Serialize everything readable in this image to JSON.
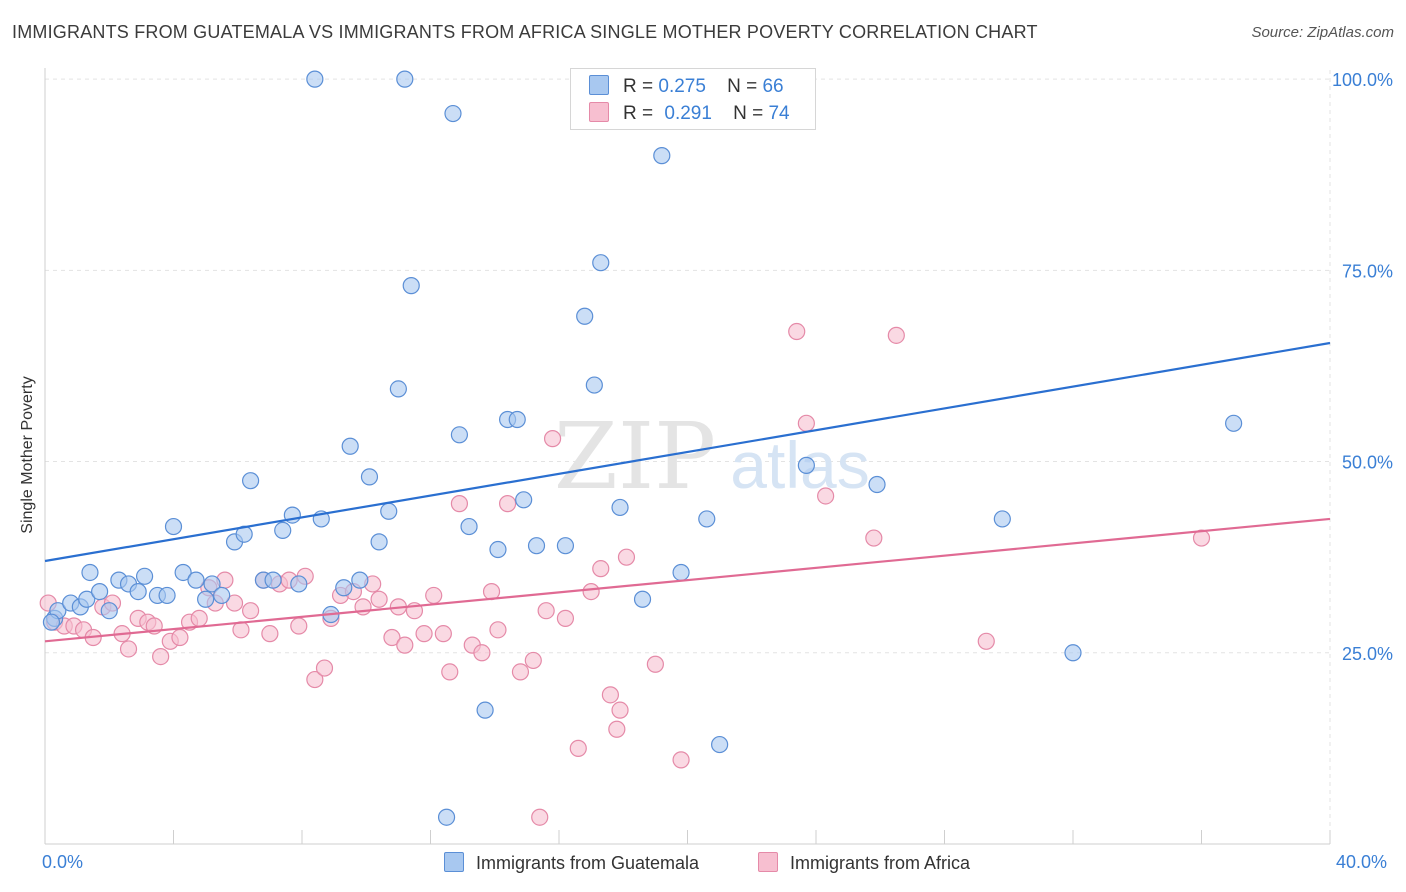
{
  "title": "IMMIGRANTS FROM GUATEMALA VS IMMIGRANTS FROM AFRICA SINGLE MOTHER POVERTY CORRELATION CHART",
  "source": "Source: ZipAtlas.com",
  "watermark": {
    "zip": "ZIP",
    "atlas": "atlas"
  },
  "legend": {
    "rows": [
      {
        "r_label": "R =",
        "r_value": "0.275",
        "n_label": "N =",
        "n_value": "66"
      },
      {
        "r_label": "R =",
        "r_value": "0.291",
        "n_label": "N =",
        "n_value": "74"
      }
    ]
  },
  "colors": {
    "guatemala_fill": "#a8c8f0",
    "guatemala_stroke": "#5b8fd6",
    "guatemala_line": "#2a6fd0",
    "africa_fill": "#f7bfd0",
    "africa_stroke": "#e58aa8",
    "africa_line": "#e06a93",
    "tick_text": "#3a7fd5",
    "grid": "#e3e3e3"
  },
  "chart_data": {
    "type": "scatter",
    "title": "IMMIGRANTS FROM GUATEMALA VS IMMIGRANTS FROM AFRICA SINGLE MOTHER POVERTY CORRELATION CHART",
    "xlabel": "",
    "ylabel": "Single Mother Poverty",
    "x_ticks": [
      "0.0%",
      "40.0%"
    ],
    "y_ticks": [
      "25.0%",
      "50.0%",
      "75.0%",
      "100.0%"
    ],
    "y_tick_values": [
      25,
      50,
      75,
      100
    ],
    "xlim": [
      0,
      40
    ],
    "ylim": [
      0,
      102.5
    ],
    "grid": true,
    "legend_position": "top-center",
    "series": [
      {
        "name": "Immigrants from Guatemala",
        "r": 0.275,
        "n": 66,
        "trend": {
          "x": [
            0,
            40
          ],
          "y": [
            37.0,
            65.5
          ]
        },
        "points": [
          [
            0.3,
            29.5
          ],
          [
            0.4,
            30.5
          ],
          [
            0.8,
            31.5
          ],
          [
            1.1,
            31.0
          ],
          [
            1.3,
            32.0
          ],
          [
            1.4,
            35.5
          ],
          [
            1.7,
            33.0
          ],
          [
            2.0,
            30.5
          ],
          [
            2.3,
            34.5
          ],
          [
            2.6,
            34.0
          ],
          [
            2.9,
            33.0
          ],
          [
            3.1,
            35.0
          ],
          [
            3.5,
            32.5
          ],
          [
            3.8,
            32.5
          ],
          [
            4.0,
            41.5
          ],
          [
            4.3,
            35.5
          ],
          [
            4.7,
            34.5
          ],
          [
            5.0,
            32.0
          ],
          [
            5.2,
            34.0
          ],
          [
            5.5,
            32.5
          ],
          [
            5.9,
            39.5
          ],
          [
            6.2,
            40.5
          ],
          [
            6.4,
            47.5
          ],
          [
            6.8,
            34.5
          ],
          [
            7.1,
            34.5
          ],
          [
            7.4,
            41.0
          ],
          [
            7.7,
            43.0
          ],
          [
            7.9,
            34.0
          ],
          [
            8.4,
            100.0
          ],
          [
            8.6,
            42.5
          ],
          [
            8.9,
            30.0
          ],
          [
            9.3,
            33.5
          ],
          [
            9.5,
            52.0
          ],
          [
            9.8,
            34.5
          ],
          [
            10.1,
            48.0
          ],
          [
            10.4,
            39.5
          ],
          [
            10.7,
            43.5
          ],
          [
            11.0,
            59.5
          ],
          [
            11.2,
            100.0
          ],
          [
            11.4,
            73.0
          ],
          [
            12.7,
            95.5
          ],
          [
            12.9,
            53.5
          ],
          [
            12.5,
            3.5
          ],
          [
            13.2,
            41.5
          ],
          [
            13.7,
            17.5
          ],
          [
            14.1,
            38.5
          ],
          [
            14.4,
            55.5
          ],
          [
            14.7,
            55.5
          ],
          [
            14.9,
            45.0
          ],
          [
            15.3,
            39.0
          ],
          [
            16.2,
            39.0
          ],
          [
            16.8,
            69.0
          ],
          [
            17.1,
            60.0
          ],
          [
            17.3,
            76.0
          ],
          [
            17.9,
            44.0
          ],
          [
            18.6,
            32.0
          ],
          [
            19.2,
            90.0
          ],
          [
            19.8,
            35.5
          ],
          [
            20.6,
            42.5
          ],
          [
            21.0,
            13.0
          ],
          [
            23.7,
            49.5
          ],
          [
            25.9,
            47.0
          ],
          [
            29.8,
            42.5
          ],
          [
            32.0,
            25.0
          ],
          [
            37.0,
            55.0
          ],
          [
            0.2,
            29.0
          ]
        ]
      },
      {
        "name": "Immigrants from Africa",
        "r": 0.291,
        "n": 74,
        "trend": {
          "x": [
            0,
            40
          ],
          "y": [
            26.5,
            42.5
          ]
        },
        "points": [
          [
            0.1,
            31.5
          ],
          [
            0.3,
            29.0
          ],
          [
            0.6,
            28.5
          ],
          [
            0.9,
            28.5
          ],
          [
            1.2,
            28.0
          ],
          [
            1.5,
            27.0
          ],
          [
            1.8,
            31.0
          ],
          [
            2.1,
            31.5
          ],
          [
            2.4,
            27.5
          ],
          [
            2.6,
            25.5
          ],
          [
            2.9,
            29.5
          ],
          [
            3.2,
            29.0
          ],
          [
            3.4,
            28.5
          ],
          [
            3.6,
            24.5
          ],
          [
            3.9,
            26.5
          ],
          [
            4.2,
            27.0
          ],
          [
            4.5,
            29.0
          ],
          [
            4.8,
            29.5
          ],
          [
            5.1,
            33.5
          ],
          [
            5.3,
            31.5
          ],
          [
            5.6,
            34.5
          ],
          [
            5.9,
            31.5
          ],
          [
            6.1,
            28.0
          ],
          [
            6.4,
            30.5
          ],
          [
            6.8,
            34.5
          ],
          [
            7.0,
            27.5
          ],
          [
            7.3,
            34.0
          ],
          [
            7.6,
            34.5
          ],
          [
            7.9,
            28.5
          ],
          [
            8.1,
            35.0
          ],
          [
            8.4,
            21.5
          ],
          [
            8.7,
            23.0
          ],
          [
            8.9,
            29.5
          ],
          [
            9.2,
            32.5
          ],
          [
            9.6,
            33.0
          ],
          [
            9.9,
            31.0
          ],
          [
            10.2,
            34.0
          ],
          [
            10.4,
            32.0
          ],
          [
            10.8,
            27.0
          ],
          [
            11.0,
            31.0
          ],
          [
            11.2,
            26.0
          ],
          [
            11.5,
            30.5
          ],
          [
            11.8,
            27.5
          ],
          [
            12.1,
            32.5
          ],
          [
            12.4,
            27.5
          ],
          [
            12.6,
            22.5
          ],
          [
            12.9,
            44.5
          ],
          [
            13.3,
            26.0
          ],
          [
            13.6,
            25.0
          ],
          [
            13.9,
            33.0
          ],
          [
            14.1,
            28.0
          ],
          [
            14.4,
            44.5
          ],
          [
            14.8,
            22.5
          ],
          [
            15.2,
            24.0
          ],
          [
            15.4,
            3.5
          ],
          [
            15.6,
            30.5
          ],
          [
            15.8,
            53.0
          ],
          [
            16.2,
            29.5
          ],
          [
            16.6,
            12.5
          ],
          [
            17.0,
            33.0
          ],
          [
            17.3,
            36.0
          ],
          [
            17.6,
            19.5
          ],
          [
            17.8,
            15.0
          ],
          [
            17.9,
            17.5
          ],
          [
            18.1,
            37.5
          ],
          [
            19.0,
            23.5
          ],
          [
            19.8,
            11.0
          ],
          [
            23.4,
            67.0
          ],
          [
            23.7,
            55.0
          ],
          [
            24.3,
            45.5
          ],
          [
            25.8,
            40.0
          ],
          [
            26.5,
            66.5
          ],
          [
            29.3,
            26.5
          ],
          [
            36.0,
            40.0
          ]
        ]
      }
    ]
  }
}
